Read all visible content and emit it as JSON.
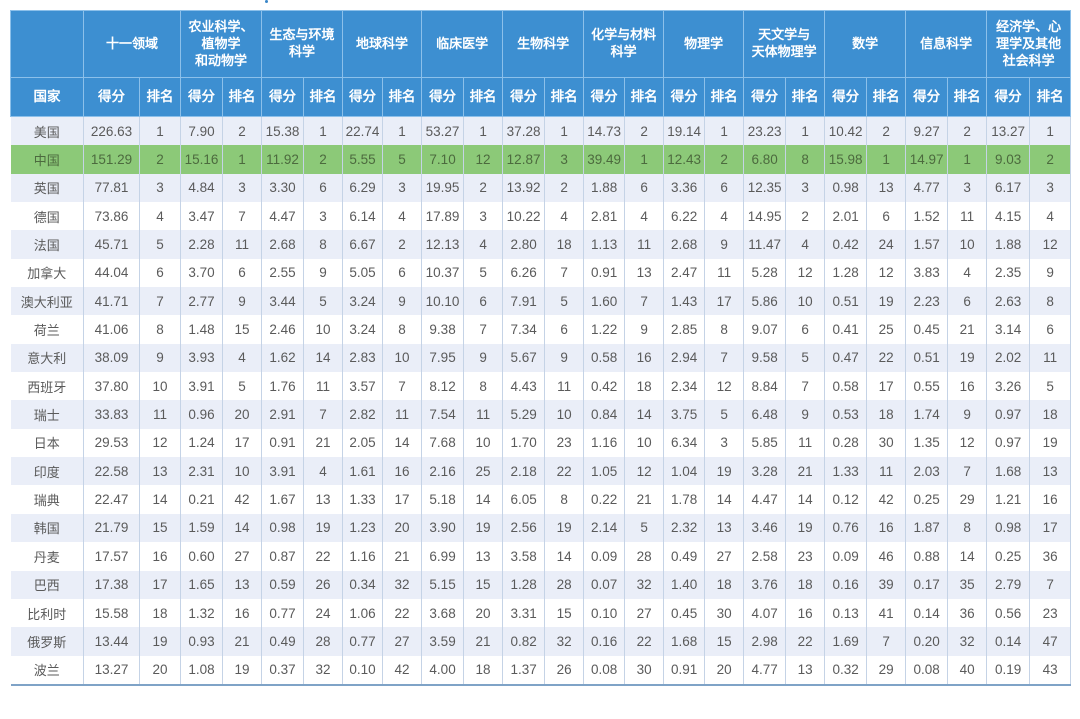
{
  "table": {
    "country_header": "国家",
    "score_label": "得分",
    "rank_label": "排名",
    "categories": [
      "十一领域",
      "农业科学、植物学和动物学",
      "生态与环境科学",
      "地球科学",
      "临床医学",
      "生物科学",
      "化学与材料科学",
      "物理学",
      "天文学与天体物理学",
      "数学",
      "信息科学",
      "经济学、心理学及其他社会科学"
    ],
    "category_display": [
      "十一领域",
      "农业科学、\n植物学\n和动物学",
      "生态与环境\n科学",
      "地球科学",
      "临床医学",
      "生物科学",
      "化学与材料\n科学",
      "物理学",
      "天文学与\n天体物理学",
      "数学",
      "信息科学",
      "经济学、心\n理学及其他\n社会科学"
    ],
    "highlight_row": "中国",
    "highlight_color": "#8cc978",
    "header_color": "#3d8fd1",
    "rows": [
      {
        "country": "美国",
        "cells": [
          "226.63",
          "1",
          "7.90",
          "2",
          "15.38",
          "1",
          "22.74",
          "1",
          "53.27",
          "1",
          "37.28",
          "1",
          "14.73",
          "2",
          "19.14",
          "1",
          "23.23",
          "1",
          "10.42",
          "2",
          "9.27",
          "2",
          "13.27",
          "1"
        ]
      },
      {
        "country": "中国",
        "cells": [
          "151.29",
          "2",
          "15.16",
          "1",
          "11.92",
          "2",
          "5.55",
          "5",
          "7.10",
          "12",
          "12.87",
          "3",
          "39.49",
          "1",
          "12.43",
          "2",
          "6.80",
          "8",
          "15.98",
          "1",
          "14.97",
          "1",
          "9.03",
          "2"
        ]
      },
      {
        "country": "英国",
        "cells": [
          "77.81",
          "3",
          "4.84",
          "3",
          "3.30",
          "6",
          "6.29",
          "3",
          "19.95",
          "2",
          "13.92",
          "2",
          "1.88",
          "6",
          "3.36",
          "6",
          "12.35",
          "3",
          "0.98",
          "13",
          "4.77",
          "3",
          "6.17",
          "3"
        ]
      },
      {
        "country": "德国",
        "cells": [
          "73.86",
          "4",
          "3.47",
          "7",
          "4.47",
          "3",
          "6.14",
          "4",
          "17.89",
          "3",
          "10.22",
          "4",
          "2.81",
          "4",
          "6.22",
          "4",
          "14.95",
          "2",
          "2.01",
          "6",
          "1.52",
          "11",
          "4.15",
          "4"
        ]
      },
      {
        "country": "法国",
        "cells": [
          "45.71",
          "5",
          "2.28",
          "11",
          "2.68",
          "8",
          "6.67",
          "2",
          "12.13",
          "4",
          "2.80",
          "18",
          "1.13",
          "11",
          "2.68",
          "9",
          "11.47",
          "4",
          "0.42",
          "24",
          "1.57",
          "10",
          "1.88",
          "12"
        ]
      },
      {
        "country": "加拿大",
        "cells": [
          "44.04",
          "6",
          "3.70",
          "6",
          "2.55",
          "9",
          "5.05",
          "6",
          "10.37",
          "5",
          "6.26",
          "7",
          "0.91",
          "13",
          "2.47",
          "11",
          "5.28",
          "12",
          "1.28",
          "12",
          "3.83",
          "4",
          "2.35",
          "9"
        ]
      },
      {
        "country": "澳大利亚",
        "cells": [
          "41.71",
          "7",
          "2.77",
          "9",
          "3.44",
          "5",
          "3.24",
          "9",
          "10.10",
          "6",
          "7.91",
          "5",
          "1.60",
          "7",
          "1.43",
          "17",
          "5.86",
          "10",
          "0.51",
          "19",
          "2.23",
          "6",
          "2.63",
          "8"
        ]
      },
      {
        "country": "荷兰",
        "cells": [
          "41.06",
          "8",
          "1.48",
          "15",
          "2.46",
          "10",
          "3.24",
          "8",
          "9.38",
          "7",
          "7.34",
          "6",
          "1.22",
          "9",
          "2.85",
          "8",
          "9.07",
          "6",
          "0.41",
          "25",
          "0.45",
          "21",
          "3.14",
          "6"
        ]
      },
      {
        "country": "意大利",
        "cells": [
          "38.09",
          "9",
          "3.93",
          "4",
          "1.62",
          "14",
          "2.83",
          "10",
          "7.95",
          "9",
          "5.67",
          "9",
          "0.58",
          "16",
          "2.94",
          "7",
          "9.58",
          "5",
          "0.47",
          "22",
          "0.51",
          "19",
          "2.02",
          "11"
        ]
      },
      {
        "country": "西班牙",
        "cells": [
          "37.80",
          "10",
          "3.91",
          "5",
          "1.76",
          "11",
          "3.57",
          "7",
          "8.12",
          "8",
          "4.43",
          "11",
          "0.42",
          "18",
          "2.34",
          "12",
          "8.84",
          "7",
          "0.58",
          "17",
          "0.55",
          "16",
          "3.26",
          "5"
        ]
      },
      {
        "country": "瑞士",
        "cells": [
          "33.83",
          "11",
          "0.96",
          "20",
          "2.91",
          "7",
          "2.82",
          "11",
          "7.54",
          "11",
          "5.29",
          "10",
          "0.84",
          "14",
          "3.75",
          "5",
          "6.48",
          "9",
          "0.53",
          "18",
          "1.74",
          "9",
          "0.97",
          "18"
        ]
      },
      {
        "country": "日本",
        "cells": [
          "29.53",
          "12",
          "1.24",
          "17",
          "0.91",
          "21",
          "2.05",
          "14",
          "7.68",
          "10",
          "1.70",
          "23",
          "1.16",
          "10",
          "6.34",
          "3",
          "5.85",
          "11",
          "0.28",
          "30",
          "1.35",
          "12",
          "0.97",
          "19"
        ]
      },
      {
        "country": "印度",
        "cells": [
          "22.58",
          "13",
          "2.31",
          "10",
          "3.91",
          "4",
          "1.61",
          "16",
          "2.16",
          "25",
          "2.18",
          "22",
          "1.05",
          "12",
          "1.04",
          "19",
          "3.28",
          "21",
          "1.33",
          "11",
          "2.03",
          "7",
          "1.68",
          "13"
        ]
      },
      {
        "country": "瑞典",
        "cells": [
          "22.47",
          "14",
          "0.21",
          "42",
          "1.67",
          "13",
          "1.33",
          "17",
          "5.18",
          "14",
          "6.05",
          "8",
          "0.22",
          "21",
          "1.78",
          "14",
          "4.47",
          "14",
          "0.12",
          "42",
          "0.25",
          "29",
          "1.21",
          "16"
        ]
      },
      {
        "country": "韩国",
        "cells": [
          "21.79",
          "15",
          "1.59",
          "14",
          "0.98",
          "19",
          "1.23",
          "20",
          "3.90",
          "19",
          "2.56",
          "19",
          "2.14",
          "5",
          "2.32",
          "13",
          "3.46",
          "19",
          "0.76",
          "16",
          "1.87",
          "8",
          "0.98",
          "17"
        ]
      },
      {
        "country": "丹麦",
        "cells": [
          "17.57",
          "16",
          "0.60",
          "27",
          "0.87",
          "22",
          "1.16",
          "21",
          "6.99",
          "13",
          "3.58",
          "14",
          "0.09",
          "28",
          "0.49",
          "27",
          "2.58",
          "23",
          "0.09",
          "46",
          "0.88",
          "14",
          "0.25",
          "36"
        ]
      },
      {
        "country": "巴西",
        "cells": [
          "17.38",
          "17",
          "1.65",
          "13",
          "0.59",
          "26",
          "0.34",
          "32",
          "5.15",
          "15",
          "1.28",
          "28",
          "0.07",
          "32",
          "1.40",
          "18",
          "3.76",
          "18",
          "0.16",
          "39",
          "0.17",
          "35",
          "2.79",
          "7"
        ]
      },
      {
        "country": "比利时",
        "cells": [
          "15.58",
          "18",
          "1.32",
          "16",
          "0.77",
          "24",
          "1.06",
          "22",
          "3.68",
          "20",
          "3.31",
          "15",
          "0.10",
          "27",
          "0.45",
          "30",
          "4.07",
          "16",
          "0.13",
          "41",
          "0.14",
          "36",
          "0.56",
          "23"
        ]
      },
      {
        "country": "俄罗斯",
        "cells": [
          "13.44",
          "19",
          "0.93",
          "21",
          "0.49",
          "28",
          "0.77",
          "27",
          "3.59",
          "21",
          "0.82",
          "32",
          "0.16",
          "22",
          "1.68",
          "15",
          "2.98",
          "22",
          "1.69",
          "7",
          "0.20",
          "32",
          "0.14",
          "47"
        ]
      },
      {
        "country": "波兰",
        "cells": [
          "13.27",
          "20",
          "1.08",
          "19",
          "0.37",
          "32",
          "0.10",
          "42",
          "4.00",
          "18",
          "1.37",
          "26",
          "0.08",
          "30",
          "0.91",
          "20",
          "4.77",
          "13",
          "0.32",
          "29",
          "0.08",
          "40",
          "0.19",
          "43"
        ]
      }
    ]
  }
}
